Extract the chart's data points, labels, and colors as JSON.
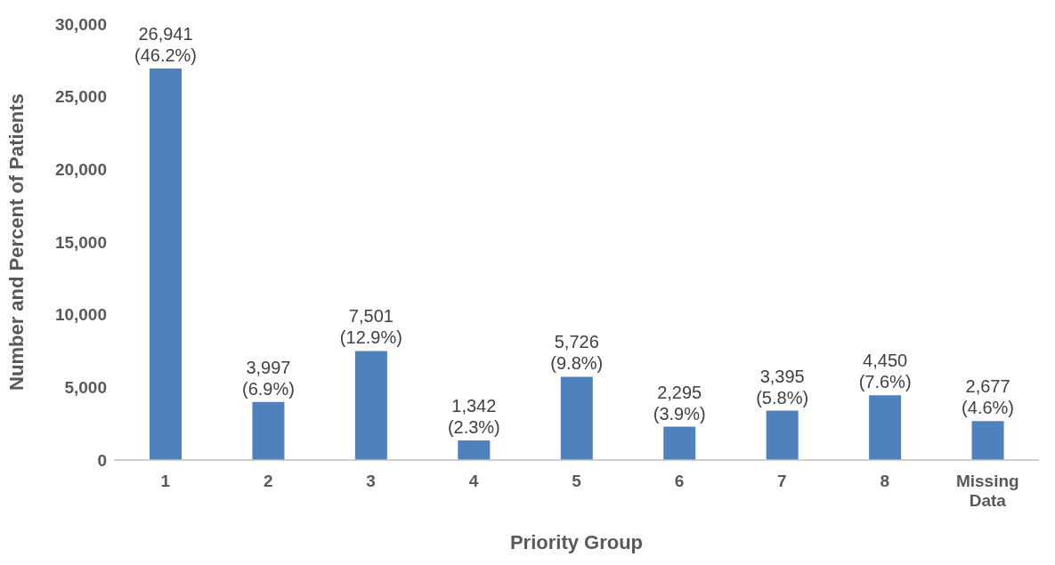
{
  "chart_data": {
    "type": "bar",
    "xlabel": "Priority Group",
    "ylabel": "Number and Percent of Patients",
    "categories": [
      "1",
      "2",
      "3",
      "4",
      "5",
      "6",
      "7",
      "8",
      "Missing Data"
    ],
    "values": [
      26941,
      3997,
      7501,
      1342,
      5726,
      2295,
      3395,
      4450,
      2677
    ],
    "value_labels": [
      "26,941\n(46.2%)",
      "3,997\n(6.9%)",
      "7,501\n(12.9%)",
      "1,342\n(2.3%)",
      "5,726\n(9.8%)",
      "2,295\n(3.9%)",
      "3,395\n(5.8%)",
      "4,450\n(7.6%)",
      "2,677\n(4.6%)"
    ],
    "color": "#4f81bd",
    "ylim": [
      0,
      30000
    ],
    "yticks": [
      0,
      {
        "value": 5000,
        "label": "5,000"
      },
      {
        "value": 10000,
        "label": "10,000"
      },
      {
        "value": 15000,
        "label": "15,000"
      },
      {
        "value": 20000,
        "label": "20,000"
      },
      {
        "value": 25000,
        "label": "25,000"
      },
      {
        "value": 30000,
        "label": "30,000"
      }
    ],
    "grid": false,
    "legend": false
  }
}
